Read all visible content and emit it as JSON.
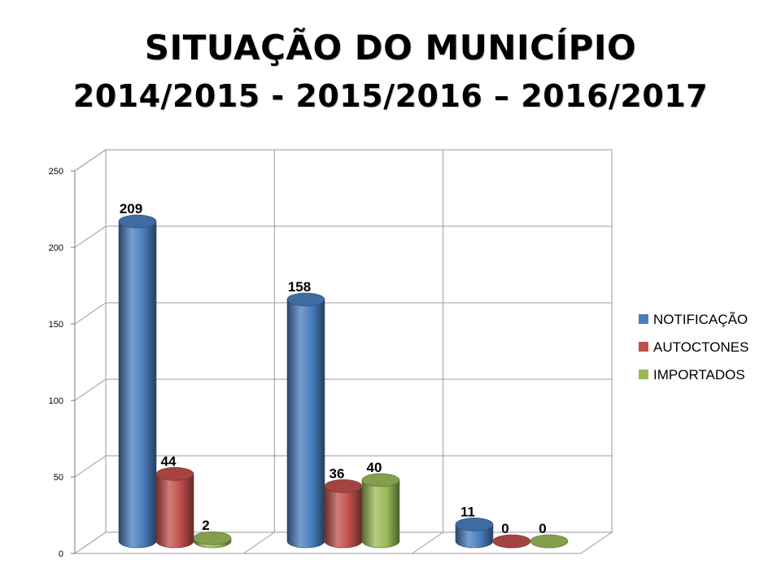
{
  "chart_data": {
    "type": "bar",
    "title": "SITUAÇÃO DO MUNICÍPIO",
    "subtitle": "2014/2015  - 2015/2016 – 2016/2017",
    "categories": [
      "",
      "",
      ""
    ],
    "series": [
      {
        "name": "NOTIFICAÇÃO",
        "color": "#4a7ebf",
        "values": [
          209,
          158,
          11
        ]
      },
      {
        "name": "AUTOCTONES",
        "color": "#c0504d",
        "values": [
          44,
          36,
          0
        ]
      },
      {
        "name": "IMPORTADOS",
        "color": "#9bbb59",
        "values": [
          2,
          40,
          0
        ]
      }
    ],
    "ylim": [
      0,
      250
    ],
    "yticks": [
      0,
      50,
      100,
      150,
      200,
      250
    ],
    "grid": true,
    "three_d": true,
    "legend_position": "right"
  }
}
